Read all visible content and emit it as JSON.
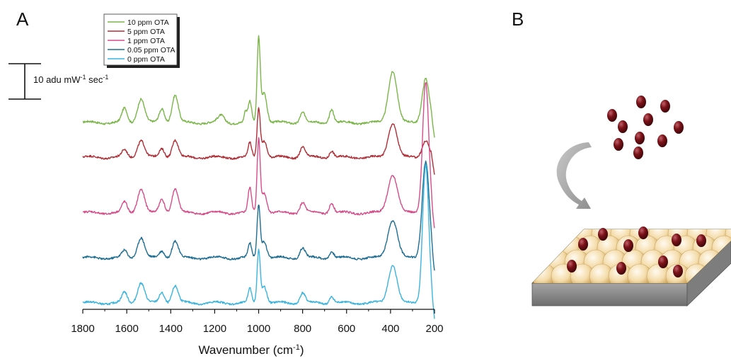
{
  "panel_labels": {
    "a": "A",
    "b": "B"
  },
  "scale_bar": {
    "value": 10,
    "text_main": "10 adu mW",
    "sup1": "-1",
    "text_mid": " sec",
    "sup2": "-1"
  },
  "axis": {
    "xlabel_main": "Wavenumber (cm",
    "xlabel_sup": "-1",
    "xlabel_end": ")"
  },
  "chart_data": {
    "type": "line",
    "title": "",
    "xlabel": "Wavenumber (cm-1)",
    "ylabel": "",
    "xlim": [
      1800,
      200
    ],
    "x_reversed": true,
    "xticks": [
      1800,
      1600,
      1400,
      1200,
      1000,
      800,
      600,
      400,
      200
    ],
    "xtick_labels": [
      "1800",
      "1600",
      "1400",
      "1200",
      "1000",
      "800",
      "600",
      "400",
      "200"
    ],
    "y_units": "adu mW-1 sec-1 (offset stacked)",
    "grid": false,
    "legend_position": "top-left",
    "series": [
      {
        "name": "10 ppm OTA",
        "color": "#7ab648",
        "offset": 52,
        "peaks": [
          [
            1610,
            4,
            12
          ],
          [
            1535,
            7,
            16
          ],
          [
            1440,
            4,
            12
          ],
          [
            1380,
            8,
            14
          ],
          [
            1170,
            2,
            15
          ],
          [
            1040,
            6,
            8
          ],
          [
            1060,
            3,
            6
          ],
          [
            1000,
            24,
            7
          ],
          [
            975,
            9,
            12
          ],
          [
            800,
            3,
            12
          ],
          [
            668,
            4,
            10
          ],
          [
            390,
            15,
            20
          ],
          [
            240,
            13,
            16
          ]
        ]
      },
      {
        "name": "5 ppm OTA",
        "color": "#b02e36",
        "offset": 42,
        "peaks": [
          [
            1610,
            2,
            12
          ],
          [
            1535,
            5,
            16
          ],
          [
            1440,
            2.5,
            12
          ],
          [
            1380,
            5,
            14
          ],
          [
            1040,
            4,
            8
          ],
          [
            1000,
            14,
            7
          ],
          [
            975,
            5,
            12
          ],
          [
            800,
            3,
            12
          ],
          [
            668,
            2,
            10
          ],
          [
            390,
            10,
            20
          ],
          [
            240,
            5,
            16
          ]
        ]
      },
      {
        "name": "1 ppm OTA",
        "color": "#d64d8a",
        "offset": 26,
        "peaks": [
          [
            1610,
            3,
            12
          ],
          [
            1535,
            7,
            16
          ],
          [
            1440,
            4,
            12
          ],
          [
            1380,
            7,
            14
          ],
          [
            1040,
            7,
            8
          ],
          [
            1000,
            21,
            7
          ],
          [
            975,
            6,
            12
          ],
          [
            800,
            3,
            12
          ],
          [
            668,
            3,
            10
          ],
          [
            390,
            11,
            22
          ],
          [
            240,
            38,
            14
          ]
        ]
      },
      {
        "name": "0.05 ppm OTA",
        "color": "#1f6e93",
        "offset": 13,
        "peaks": [
          [
            1610,
            2,
            12
          ],
          [
            1535,
            6,
            16
          ],
          [
            1440,
            2,
            12
          ],
          [
            1380,
            5,
            14
          ],
          [
            1040,
            4,
            8
          ],
          [
            1000,
            15,
            7
          ],
          [
            975,
            5,
            12
          ],
          [
            800,
            3,
            12
          ],
          [
            668,
            2,
            10
          ],
          [
            390,
            11,
            22
          ],
          [
            240,
            28,
            16
          ]
        ]
      },
      {
        "name": "0 ppm OTA",
        "color": "#3bb4de",
        "offset": 0,
        "peaks": [
          [
            1610,
            3,
            12
          ],
          [
            1535,
            6,
            16
          ],
          [
            1440,
            3,
            12
          ],
          [
            1380,
            5,
            14
          ],
          [
            1040,
            4,
            8
          ],
          [
            1000,
            15,
            7
          ],
          [
            975,
            5,
            12
          ],
          [
            800,
            3,
            12
          ],
          [
            668,
            2,
            10
          ],
          [
            390,
            11,
            20
          ],
          [
            240,
            40,
            14
          ]
        ]
      }
    ]
  },
  "colors": {
    "slab_top": "#c8a657",
    "slab_side": "#8c8c8c",
    "sphere": "#f5deb0",
    "molecule": "#6b0e12",
    "arrow": "#a9a9a9"
  }
}
